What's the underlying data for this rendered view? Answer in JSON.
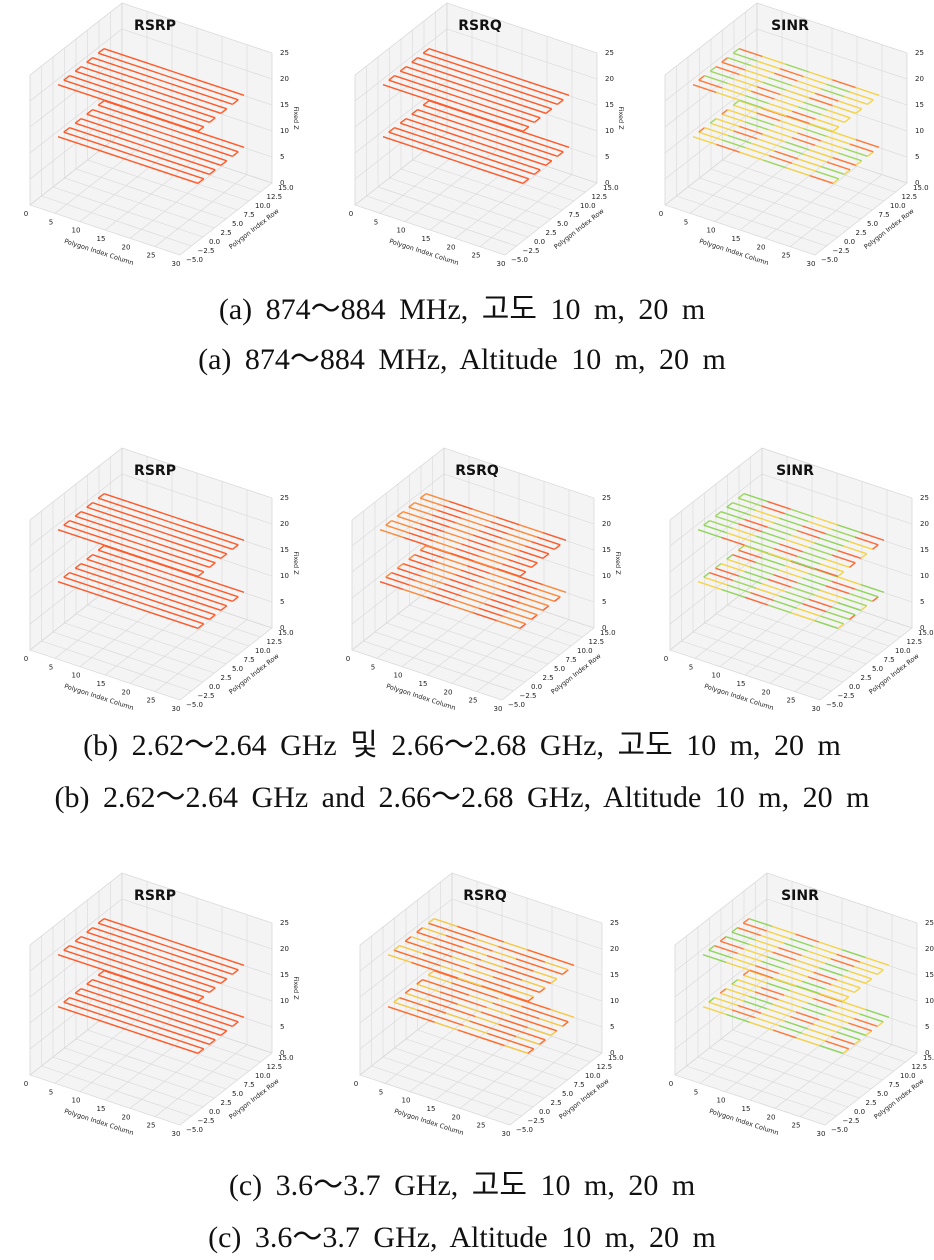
{
  "axes": {
    "xlabel": "Polygon Index Column",
    "ylabel": "Polygon Index Row",
    "zlabel": "Fixed Z",
    "xlim": [
      0,
      30
    ],
    "xticks": [
      0,
      5,
      10,
      15,
      20,
      25,
      30
    ],
    "ylim": [
      -5,
      15
    ],
    "yticks": [
      {
        "value": -5,
        "label": "−5.0"
      },
      {
        "value": -2.5,
        "label": "−2.5"
      },
      {
        "value": 0,
        "label": "0.0"
      },
      {
        "value": 2.5,
        "label": "2.5"
      },
      {
        "value": 5,
        "label": "5.0"
      },
      {
        "value": 7.5,
        "label": "7.5"
      },
      {
        "value": 10,
        "label": "10.0"
      },
      {
        "value": 12.5,
        "label": "12.5"
      },
      {
        "value": 15,
        "label": "15.0"
      }
    ],
    "zlim": [
      0,
      25
    ],
    "zticks": [
      0,
      5,
      10,
      15,
      20,
      25
    ],
    "grid": true
  },
  "figures": [
    {
      "plots": [
        {
          "title": "RSRP",
          "colors": [
            "#ff5a2a"
          ],
          "show_zlabel": true
        },
        {
          "title": "RSRQ",
          "colors": [
            "#ff5a2a"
          ],
          "show_zlabel": true
        },
        {
          "title": "SINR",
          "colors": [
            "#f5d44a",
            "#ff7a3a",
            "#f5d44a",
            "#9fd860"
          ],
          "show_zlabel": false
        }
      ],
      "captions": [
        "(a) 874～884 MHz, 고도 10 m, 20 m",
        "(a) 874～884 MHz, Altitude 10 m, 20 m"
      ]
    },
    {
      "plots": [
        {
          "title": "RSRP",
          "colors": [
            "#ff5a2a"
          ],
          "show_zlabel": true
        },
        {
          "title": "RSRQ",
          "colors": [
            "#ff5a2a",
            "#ff8a3a"
          ],
          "show_zlabel": true
        },
        {
          "title": "SINR",
          "colors": [
            "#f5d44a",
            "#8fd65a",
            "#ff6a3a",
            "#9fd860"
          ],
          "show_zlabel": false
        }
      ],
      "captions": [
        "(b) 2.62～2.64 GHz 및 2.66～2.68 GHz, 고도 10 m, 20 m",
        "(b) 2.62～2.64 GHz and 2.66～2.68 GHz, Altitude 10 m, 20 m"
      ]
    },
    {
      "plots": [
        {
          "title": "RSRP",
          "colors": [
            "#ff5a2a"
          ],
          "show_zlabel": true
        },
        {
          "title": "RSRQ",
          "colors": [
            "#ff6a2a",
            "#f5c84a",
            "#ff6a2a"
          ],
          "show_zlabel": false
        },
        {
          "title": "SINR",
          "colors": [
            "#f5d44a",
            "#8fd65a",
            "#f5d44a",
            "#ff7a3a"
          ],
          "show_zlabel": false
        }
      ],
      "captions": [
        "(c) 3.6～3.7 GHz, 고도 10 m, 20 m",
        "(c) 3.6～3.7 GHz, Altitude 10 m, 20 m"
      ]
    }
  ]
}
